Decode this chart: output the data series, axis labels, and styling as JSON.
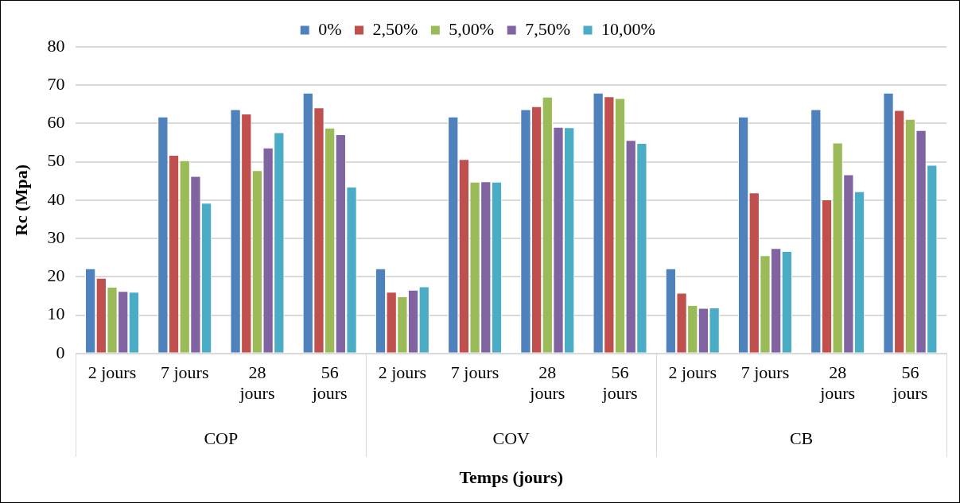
{
  "chart_data": {
    "type": "bar",
    "xlabel": "Temps (jours)",
    "ylabel": "Rc (Mpa)",
    "categories": [
      "2 jours",
      "7 jours",
      "28 jours",
      "56 jours",
      "2 jours",
      "7 jours",
      "28 jours",
      "56 jours",
      "2 jours",
      "7 jours",
      "28 jours",
      "56 jours"
    ],
    "annotations": [
      "COP",
      "COV",
      "CB"
    ],
    "series": [
      {
        "name": "0%",
        "color": "#4f81bd",
        "values": [
          22.2,
          61.8,
          63.7,
          68,
          22.2,
          61.8,
          63.7,
          68,
          22.2,
          61.8,
          63.7,
          68
        ]
      },
      {
        "name": "2,50%",
        "color": "#c0504d",
        "values": [
          19.7,
          51.8,
          62.6,
          64.2,
          16.1,
          50.7,
          64.5,
          67.1,
          15.8,
          42,
          40.2,
          63.5
        ]
      },
      {
        "name": "5,00%",
        "color": "#9bbb59",
        "values": [
          17.4,
          50.4,
          47.8,
          58.9,
          14.9,
          44.8,
          67,
          66.6,
          12.6,
          25.6,
          55,
          61.2
        ]
      },
      {
        "name": "7,50%",
        "color": "#8064a2",
        "values": [
          16.3,
          46.3,
          53.7,
          57.2,
          16.6,
          44.9,
          59.1,
          55.7,
          11.9,
          27.5,
          46.7,
          58.3
        ]
      },
      {
        "name": "10,00%",
        "color": "#4bacc6",
        "values": [
          16.1,
          39.3,
          57.7,
          43.5,
          17.5,
          44.8,
          59,
          54.9,
          12,
          26.7,
          42.3,
          49.2
        ]
      }
    ],
    "ylim": [
      0,
      80
    ],
    "yticks": [
      0,
      10,
      20,
      30,
      40,
      50,
      60,
      70,
      80
    ],
    "grid": "y",
    "legend": "top"
  }
}
